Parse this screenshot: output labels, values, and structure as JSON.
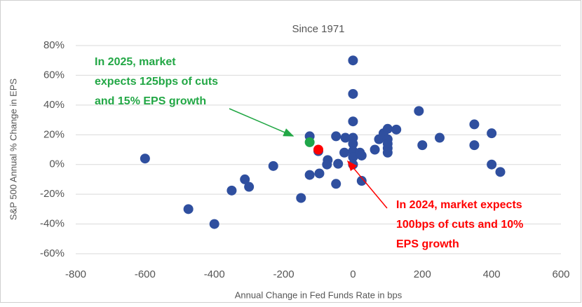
{
  "chart_data": {
    "type": "scatter",
    "title": "Since 1971",
    "x_label": "Annual Change in Fed Funds Rate in bps",
    "y_label": "S&P 500 Annual % Change in EPS",
    "xlim": [
      -800,
      600
    ],
    "xticks": [
      -800,
      -600,
      -400,
      -200,
      0,
      200,
      400,
      600
    ],
    "ylim": [
      -60,
      80
    ],
    "yticks": [
      {
        "value": -60,
        "label": "-60%"
      },
      {
        "value": -40,
        "label": "-40%"
      },
      {
        "value": -20,
        "label": "-20%"
      },
      {
        "value": 0,
        "label": "0%"
      },
      {
        "value": 20,
        "label": "20%"
      },
      {
        "value": 40,
        "label": "40%"
      },
      {
        "value": 60,
        "label": "60%"
      },
      {
        "value": 80,
        "label": "80%"
      }
    ],
    "grid": true,
    "series": [
      {
        "color": "#2f4f9f",
        "x": [
          -600,
          -475,
          -400,
          -350,
          -312,
          -300,
          -230,
          -150,
          -125,
          -125,
          -100,
          -97,
          -73,
          -75,
          -49,
          -49,
          -43,
          -25,
          -22,
          0,
          0,
          0,
          0,
          0,
          0,
          0,
          0,
          20,
          25,
          25,
          63,
          75,
          88,
          100,
          100,
          100,
          100,
          100,
          125,
          190,
          200,
          250,
          350,
          350,
          400,
          400,
          425
        ],
        "values": [
          4,
          -30,
          -40,
          -17.5,
          -10,
          -15,
          -1,
          -22.5,
          19,
          -7,
          9,
          -6,
          3,
          0,
          19,
          -13,
          0.5,
          8,
          18,
          70,
          47.5,
          29,
          18,
          14,
          9,
          5,
          0,
          8,
          6,
          -11,
          10,
          17,
          21,
          24,
          17,
          14,
          11,
          8,
          23.5,
          36,
          13,
          18,
          27,
          13,
          21,
          0,
          -5
        ]
      },
      {
        "color": "#1fa64a",
        "x": [
          -125
        ],
        "values": [
          15
        ]
      },
      {
        "color": "#ff0000",
        "x": [
          -100
        ],
        "values": [
          10
        ]
      }
    ],
    "annotations": [
      {
        "lines": [
          "In 2025, market",
          "expects 125bps of cuts",
          "and 15% EPS growth"
        ],
        "color": "#22a745"
      },
      {
        "lines": [
          "In 2024, market expects",
          "100bps of cuts and 10%",
          "EPS growth"
        ],
        "color": "#ff0000"
      }
    ]
  }
}
